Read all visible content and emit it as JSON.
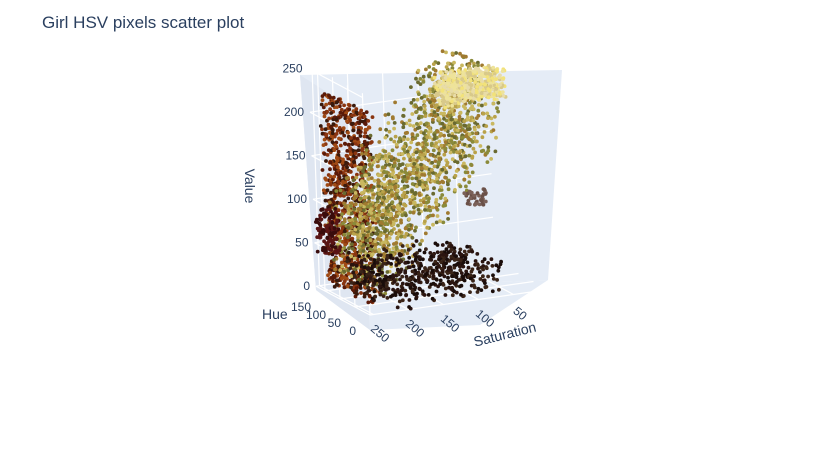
{
  "chart_data": {
    "type": "scatter3d",
    "title": "Girl HSV pixels scatter plot",
    "axes": {
      "x": {
        "label": "Hue",
        "ticks": [
          0,
          50,
          100,
          150
        ],
        "range": [
          0,
          180
        ]
      },
      "y": {
        "label": "Saturation",
        "ticks": [
          50,
          100,
          150,
          200,
          250
        ],
        "range": [
          0,
          255
        ]
      },
      "z": {
        "label": "Value",
        "ticks": [
          0,
          50,
          100,
          150,
          200,
          250
        ],
        "range": [
          0,
          255
        ]
      }
    },
    "grid": true,
    "background_color": "#e5ecf6",
    "grid_color": "#ffffff",
    "marker_color_mode": "pixel RGB colour",
    "point_clusters": [
      {
        "region": "dense wall at high saturation",
        "hue": [
          0,
          150
        ],
        "saturation": [
          240,
          255
        ],
        "value": [
          10,
          230
        ],
        "colors": [
          "#5a1a08",
          "#8a3510",
          "#a04a14",
          "#3a1a0c"
        ]
      },
      {
        "region": "main body",
        "hue": [
          0,
          170
        ],
        "saturation": [
          60,
          240
        ],
        "value": [
          20,
          255
        ],
        "colors": [
          "#b9a24a",
          "#8a8a3a",
          "#c9b860",
          "#6a6a30",
          "#a07a30"
        ]
      },
      {
        "region": "light highlights",
        "hue": [
          20,
          60
        ],
        "saturation": [
          40,
          130
        ],
        "value": [
          220,
          255
        ],
        "colors": [
          "#eee39a",
          "#f2e27a",
          "#e8dca8",
          "#d8c98a"
        ]
      },
      {
        "region": "dark low-value band",
        "hue": [
          0,
          170
        ],
        "saturation": [
          60,
          230
        ],
        "value": [
          0,
          40
        ],
        "colors": [
          "#2a1410",
          "#3a2418",
          "#1a0d0a"
        ]
      },
      {
        "region": "isolated cluster",
        "hue": [
          150,
          175
        ],
        "saturation": [
          230,
          255
        ],
        "value": [
          40,
          90
        ],
        "colors": [
          "#3a0c0c",
          "#5a1515"
        ]
      },
      {
        "region": "outlier streak",
        "hue": [
          110,
          140
        ],
        "saturation": [
          30,
          60
        ],
        "value": [
          80,
          95
        ],
        "colors": [
          "#6a5048",
          "#7a6058"
        ]
      }
    ]
  }
}
